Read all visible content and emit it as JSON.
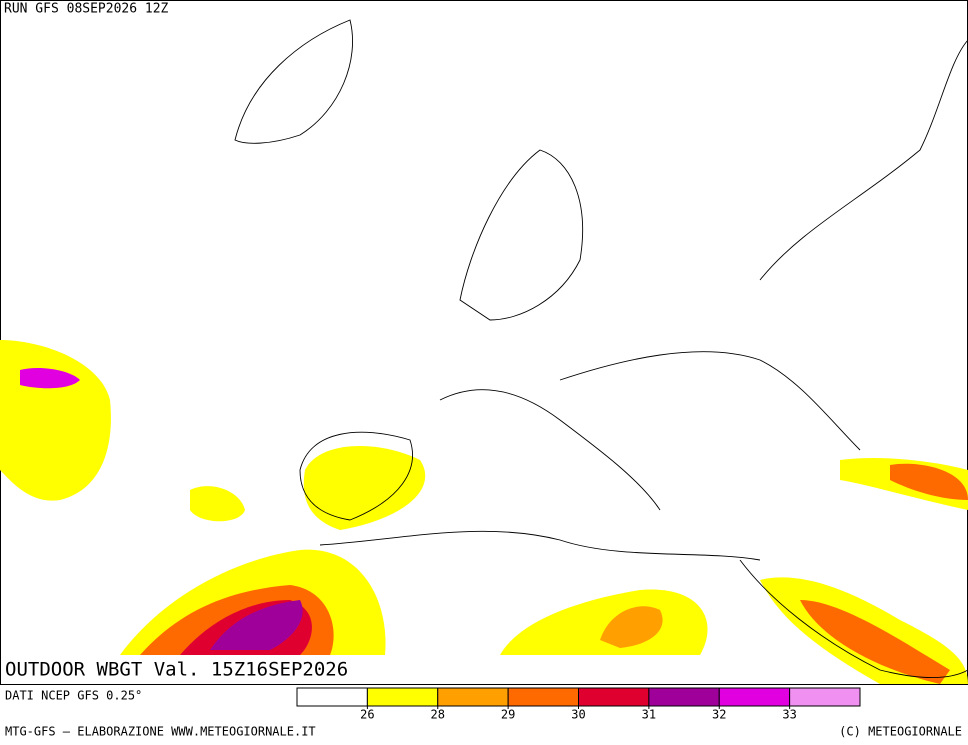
{
  "header": {
    "run": "RUN GFS 08SEP2026 12Z"
  },
  "map": {
    "title": "OUTDOOR WBGT Val. 15Z16SEP2026"
  },
  "legend": {
    "source": "DATI NCEP GFS 0.25°",
    "colors": [
      "#ffffff",
      "#ffff00",
      "#ffa000",
      "#ff6a00",
      "#e00030",
      "#a0009a",
      "#e000e0",
      "#f090f0"
    ],
    "ticks": [
      26,
      28,
      29,
      30,
      31,
      32,
      33
    ]
  },
  "footer": {
    "left": "MTG-GFS — ELABORAZIONE WWW.METEOGIORNALE.IT",
    "right": "(C) METEOGIORNALE"
  }
}
